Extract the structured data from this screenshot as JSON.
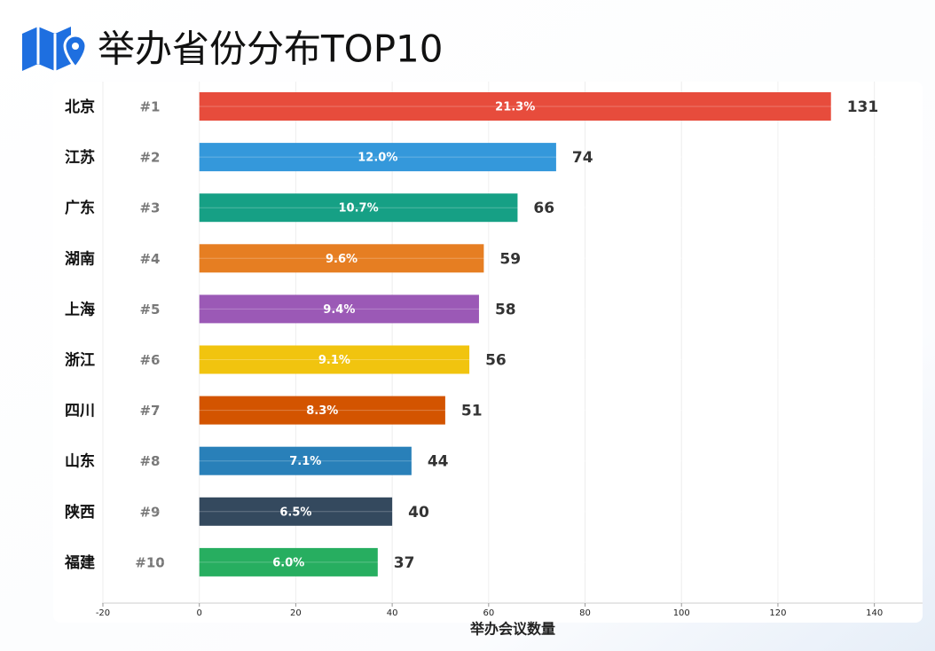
{
  "chart_data": {
    "type": "bar",
    "orientation": "horizontal",
    "title": "举办省份分布TOP10",
    "x_label": "举办会议数量",
    "categories": [
      "北京",
      "江苏",
      "广东",
      "湖南",
      "上海",
      "浙江",
      "四川",
      "山东",
      "陕西",
      "福建"
    ],
    "ranks": [
      "#1",
      "#2",
      "#3",
      "#4",
      "#5",
      "#6",
      "#7",
      "#8",
      "#9",
      "#10"
    ],
    "values": [
      131,
      74,
      66,
      59,
      58,
      56,
      51,
      44,
      40,
      37
    ],
    "share_labels": [
      "21.3%",
      "12.0%",
      "10.7%",
      "9.6%",
      "9.4%",
      "9.1%",
      "8.3%",
      "7.1%",
      "6.5%",
      "6.0%"
    ],
    "colors": [
      "#e74c3c",
      "#3498db",
      "#16a085",
      "#e67e22",
      "#9b59b6",
      "#f1c40f",
      "#d35400",
      "#2980b9",
      "#34495e",
      "#27ae60"
    ],
    "xlim": [
      -20,
      150
    ],
    "xticks": [
      -20,
      0,
      20,
      40,
      60,
      80,
      100,
      120,
      140
    ],
    "grid": true
  }
}
